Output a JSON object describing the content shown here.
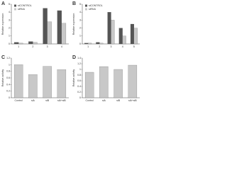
{
  "chart_data": [
    {
      "type": "bar",
      "title": "A",
      "ylabel": "Relative expression",
      "categories": [
        "1",
        "2",
        "3",
        "4"
      ],
      "series": [
        {
          "name": "siCONTROL",
          "color": "#555555",
          "values": [
            0.2,
            0.3,
            4.5,
            4.2
          ]
        },
        {
          "name": "siRNA",
          "color": "#c8c8c8",
          "values": [
            0.1,
            0.2,
            2.8,
            2.6
          ]
        }
      ],
      "ylim": [
        0,
        5
      ],
      "yticks": [
        0,
        1,
        2,
        3,
        4,
        5
      ]
    },
    {
      "type": "bar",
      "title": "B",
      "ylabel": "Relative expression",
      "categories": [
        "1",
        "2",
        "3",
        "4",
        "5"
      ],
      "series": [
        {
          "name": "siCONTROL",
          "color": "#555555",
          "values": [
            0.1,
            0.2,
            4.0,
            2.0,
            2.5
          ]
        },
        {
          "name": "siRNA",
          "color": "#c8c8c8",
          "values": [
            0.1,
            0.1,
            3.0,
            1.0,
            2.0
          ]
        }
      ],
      "ylim": [
        0,
        5
      ],
      "yticks": [
        0,
        1,
        2,
        3,
        4,
        5
      ]
    },
    {
      "type": "bar",
      "title": "C",
      "ylabel": "Relative activity",
      "categories": [
        "Control",
        "siA",
        "siB",
        "siA+siB"
      ],
      "series": [
        {
          "name": "Activity",
          "color": "#c8c8c8",
          "values": [
            1.0,
            0.7,
            0.95,
            0.85
          ]
        }
      ],
      "ylim": [
        0,
        1.2
      ],
      "yticks": [
        0,
        0.2,
        0.4,
        0.6,
        0.8,
        1,
        1.2
      ]
    },
    {
      "type": "bar",
      "title": "D",
      "ylabel": "Relative activity",
      "categories": [
        "Control",
        "siA",
        "siB",
        "siA+siB"
      ],
      "series": [
        {
          "name": "Activity",
          "color": "#c8c8c8",
          "values": [
            0.9,
            1.1,
            1.0,
            1.15
          ]
        }
      ],
      "ylim": [
        0,
        1.4
      ],
      "yticks": [
        0,
        0.2,
        0.4,
        0.6,
        0.8,
        1,
        1.2,
        1.4
      ]
    }
  ]
}
